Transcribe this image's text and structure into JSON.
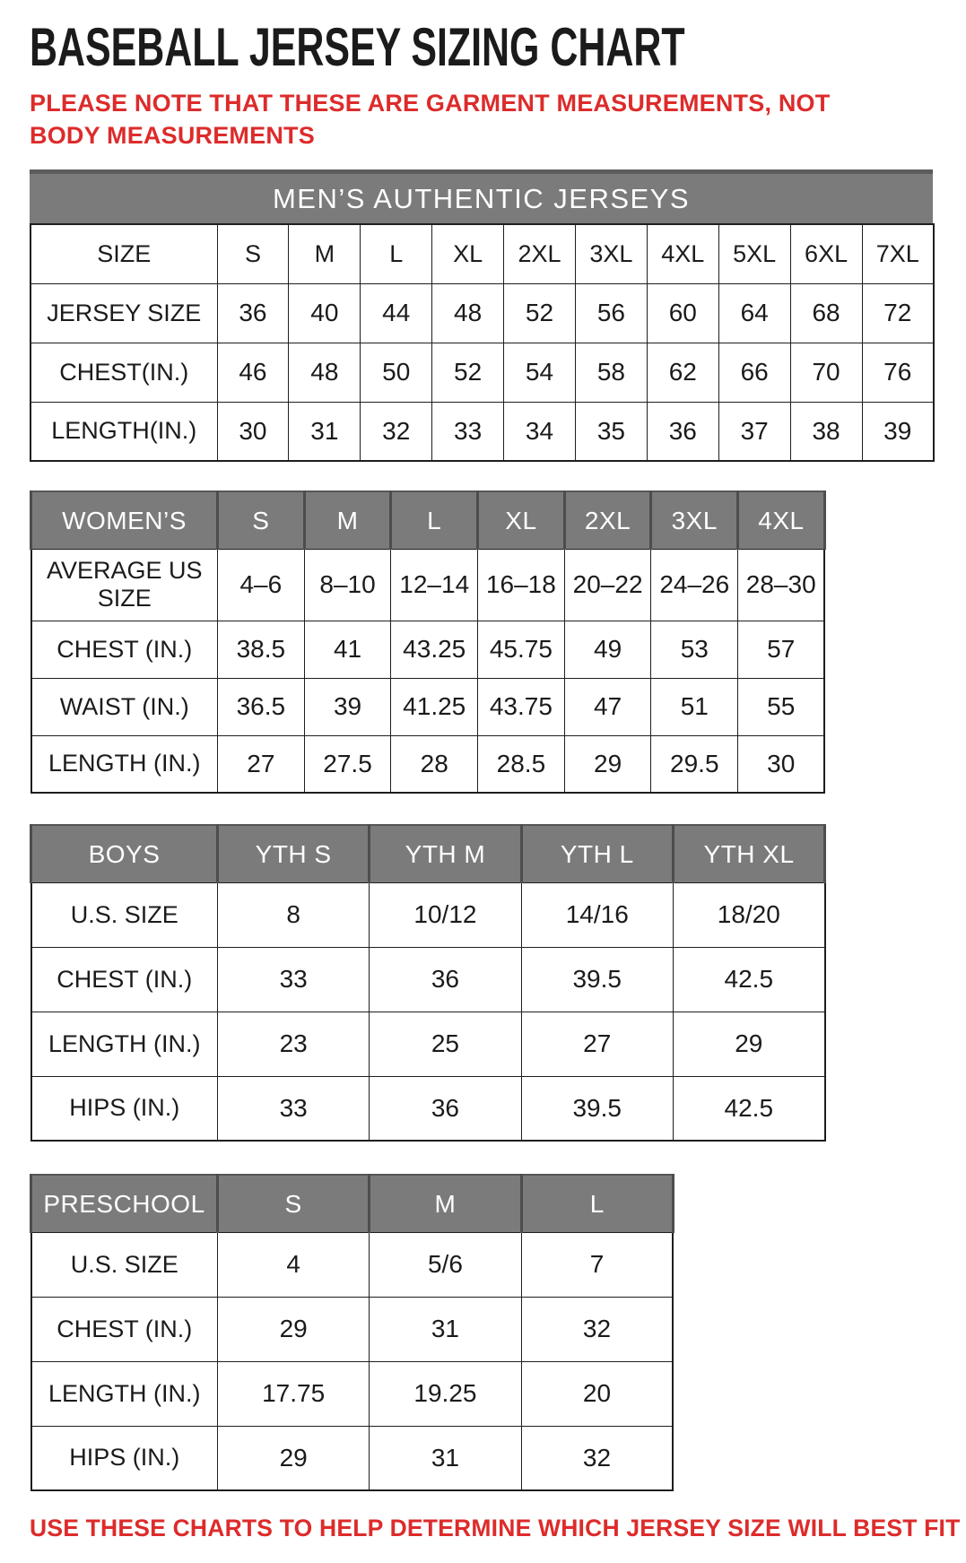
{
  "page": {
    "title": "BASEBALL JERSEY SIZING CHART",
    "note": "PLEASE NOTE THAT THESE ARE GARMENT MEASUREMENTS, NOT BODY MEASUREMENTS",
    "footer": "USE THESE CHARTS TO HELP DETERMINE WHICH JERSEY SIZE WILL BEST FIT YOU."
  },
  "colors": {
    "accent_red": "#dd2b2b",
    "header_gray": "#7b7b7b",
    "border_black": "#1e1e1e"
  },
  "tables": {
    "mens": {
      "header": "MEN’S AUTHENTIC JERSEYS",
      "columns": [
        "SIZE",
        "S",
        "M",
        "L",
        "XL",
        "2XL",
        "3XL",
        "4XL",
        "5XL",
        "6XL",
        "7XL"
      ],
      "rows": [
        {
          "label": "JERSEY SIZE",
          "values": [
            "36",
            "40",
            "44",
            "48",
            "52",
            "56",
            "60",
            "64",
            "68",
            "72"
          ]
        },
        {
          "label": "CHEST(IN.)",
          "values": [
            "46",
            "48",
            "50",
            "52",
            "54",
            "58",
            "62",
            "66",
            "70",
            "76"
          ]
        },
        {
          "label": "LENGTH(IN.)",
          "values": [
            "30",
            "31",
            "32",
            "33",
            "34",
            "35",
            "36",
            "37",
            "38",
            "39"
          ]
        }
      ]
    },
    "womens": {
      "columns": [
        "WOMEN’S",
        "S",
        "M",
        "L",
        "XL",
        "2XL",
        "3XL",
        "4XL"
      ],
      "rows": [
        {
          "label": "AVERAGE US SIZE",
          "values": [
            "4–6",
            "8–10",
            "12–14",
            "16–18",
            "20–22",
            "24–26",
            "28–30"
          ]
        },
        {
          "label": "CHEST (IN.)",
          "values": [
            "38.5",
            "41",
            "43.25",
            "45.75",
            "49",
            "53",
            "57"
          ]
        },
        {
          "label": "WAIST (IN.)",
          "values": [
            "36.5",
            "39",
            "41.25",
            "43.75",
            "47",
            "51",
            "55"
          ]
        },
        {
          "label": "LENGTH (IN.)",
          "values": [
            "27",
            "27.5",
            "28",
            "28.5",
            "29",
            "29.5",
            "30"
          ]
        }
      ]
    },
    "boys": {
      "columns": [
        "BOYS",
        "YTH S",
        "YTH M",
        "YTH L",
        "YTH XL"
      ],
      "rows": [
        {
          "label": "U.S. SIZE",
          "values": [
            "8",
            "10/12",
            "14/16",
            "18/20"
          ]
        },
        {
          "label": "CHEST (IN.)",
          "values": [
            "33",
            "36",
            "39.5",
            "42.5"
          ]
        },
        {
          "label": "LENGTH (IN.)",
          "values": [
            "23",
            "25",
            "27",
            "29"
          ]
        },
        {
          "label": "HIPS (IN.)",
          "values": [
            "33",
            "36",
            "39.5",
            "42.5"
          ]
        }
      ]
    },
    "preschool": {
      "columns": [
        "PRESCHOOL",
        "S",
        "M",
        "L"
      ],
      "rows": [
        {
          "label": "U.S. SIZE",
          "values": [
            "4",
            "5/6",
            "7"
          ]
        },
        {
          "label": "CHEST (IN.)",
          "values": [
            "29",
            "31",
            "32"
          ]
        },
        {
          "label": "LENGTH (IN.)",
          "values": [
            "17.75",
            "19.25",
            "20"
          ]
        },
        {
          "label": "HIPS (IN.)",
          "values": [
            "29",
            "31",
            "32"
          ]
        }
      ]
    }
  }
}
